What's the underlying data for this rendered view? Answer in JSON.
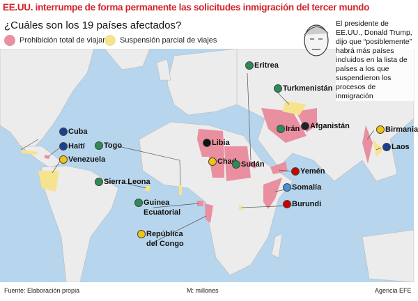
{
  "header": {
    "title": "EE.UU. interrumpe de forma permanente las solicitudes inmigración del tercer mundo",
    "subtitle": "¿Cuáles son los 19 países afectados?"
  },
  "legend": [
    {
      "label": "Prohibición total de viajar",
      "color": "#e98fa0"
    },
    {
      "label": "Suspensión parcial de viajes",
      "color": "#f6e38d"
    }
  ],
  "note": "El presidente de EE.UU., Donald Trump, dijo que “posiblemente” habrá más países incluidos en la lista de países a los que suspendieron los procesos de inmigración",
  "countries": [
    {
      "label": "Eritrea",
      "color": "#e98fa0"
    },
    {
      "label": "Turkmenistán",
      "color": "#f6e38d"
    },
    {
      "label": "Irán",
      "color": "#e98fa0"
    },
    {
      "label": "Afganistán",
      "color": "#e98fa0"
    },
    {
      "label": "Birmania",
      "color": "#e98fa0"
    },
    {
      "label": "Laos",
      "color": "#f6e38d"
    },
    {
      "label": "Libia",
      "color": "#e98fa0"
    },
    {
      "label": "Chad",
      "color": "#e98fa0"
    },
    {
      "label": "Sudán",
      "color": "#e98fa0"
    },
    {
      "label": "Yemén",
      "color": "#e98fa0"
    },
    {
      "label": "Somalía",
      "color": "#e98fa0"
    },
    {
      "label": "Burundi",
      "color": "#f6e38d"
    },
    {
      "label": "Cuba",
      "color": "#f6e38d"
    },
    {
      "label": "Haití",
      "color": "#e98fa0"
    },
    {
      "label": "Togo",
      "color": "#f6e38d"
    },
    {
      "label": "Venezuela",
      "color": "#f6e38d"
    },
    {
      "label": "Sierra Leona",
      "color": "#f6e38d"
    },
    {
      "label": "Guinea Ecuatorial",
      "color": "#e98fa0"
    },
    {
      "label": "República del Congo",
      "color": "#e98fa0"
    }
  ],
  "footer": {
    "source": "Fuente: Elaboración propia",
    "unit": "M: millones",
    "agency": "Agencia EFE"
  }
}
